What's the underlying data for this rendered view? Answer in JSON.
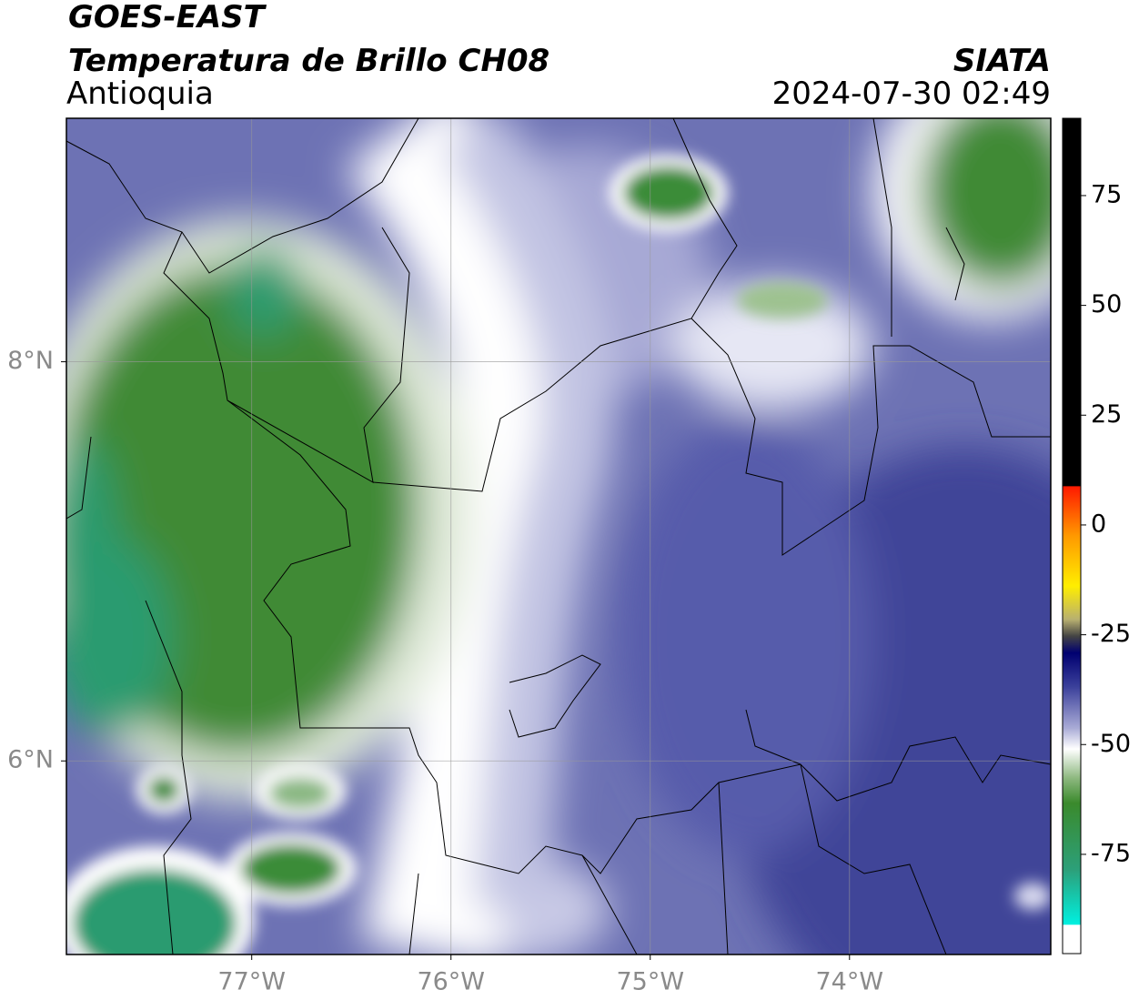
{
  "header": {
    "title": "GOES-EAST",
    "subtitle": "Temperatura de Brillo CH08",
    "region": "Antioquia",
    "source": "SIATA",
    "timestamp": "2024-07-30 02:49"
  },
  "map": {
    "xlim": [
      -77.93,
      -72.99
    ],
    "ylim": [
      5.03,
      9.22
    ],
    "xticks": [
      {
        "value": -77,
        "label": "77°W"
      },
      {
        "value": -76,
        "label": "76°W"
      },
      {
        "value": -75,
        "label": "75°W"
      },
      {
        "value": -74,
        "label": "74°W"
      }
    ],
    "yticks": [
      {
        "value": 8,
        "label": "8°N"
      },
      {
        "value": 6,
        "label": "6°N"
      }
    ],
    "grid": true
  },
  "colorbar": {
    "lim": [
      -97.6,
      92.6
    ],
    "ticks": [
      75,
      50,
      25,
      0,
      -25,
      -50,
      -75
    ]
  }
}
